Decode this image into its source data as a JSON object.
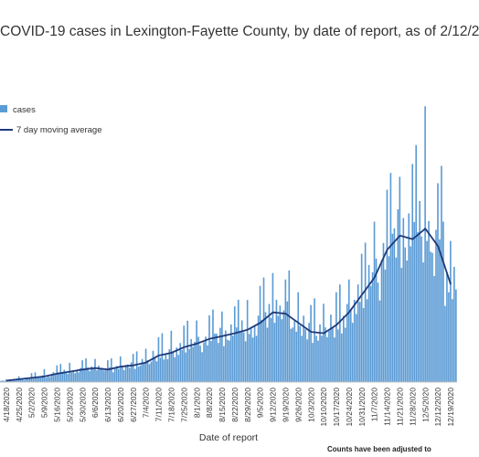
{
  "chart_data": {
    "type": "bar",
    "title": "COVID-19 cases in Lexington-Fayette County, by date of report, as of 2/12/2",
    "xlabel": "Date of report",
    "ylabel": "",
    "note": "Counts have been adjusted to",
    "legend": {
      "placement": "top-left",
      "entries": [
        {
          "name": "cases",
          "type": "bar",
          "color": "#5b9bd5"
        },
        {
          "name": "7 day moving average",
          "type": "line",
          "color": "#1f3a7a"
        }
      ]
    },
    "x_ticks": [
      "4/18/2020",
      "4/25/2020",
      "5/2/2020",
      "5/9/2020",
      "5/16/2020",
      "5/23/2020",
      "5/30/2020",
      "6/6/2020",
      "6/13/2020",
      "6/20/2020",
      "6/27/2020",
      "7/4/2020",
      "7/11/2020",
      "7/18/2020",
      "7/25/2020",
      "8/1/2020",
      "8/8/2020",
      "8/15/2020",
      "8/22/2020",
      "8/29/2020",
      "9/5/2020",
      "9/12/2020",
      "9/19/2020",
      "9/26/2020",
      "10/3/2020",
      "10/10/2020",
      "10/17/2020",
      "10/24/2020",
      "10/31/2020",
      "11/7/2020",
      "11/14/2020",
      "11/21/2020",
      "11/28/2020",
      "12/5/2020",
      "12/12/2020",
      "12/19/2020"
    ],
    "weekly_average": [
      2,
      4,
      6,
      8,
      12,
      15,
      18,
      20,
      18,
      22,
      24,
      28,
      38,
      42,
      50,
      55,
      62,
      66,
      70,
      75,
      85,
      100,
      98,
      85,
      72,
      70,
      82,
      100,
      125,
      150,
      190,
      210,
      205,
      220,
      195,
      140
    ],
    "peak_values": [
      4,
      9,
      14,
      20,
      26,
      30,
      34,
      36,
      34,
      40,
      44,
      52,
      70,
      80,
      88,
      96,
      104,
      110,
      118,
      128,
      150,
      170,
      160,
      140,
      120,
      122,
      140,
      160,
      200,
      250,
      300,
      320,
      340,
      430,
      310,
      220
    ],
    "grid": false,
    "colors": {
      "bar": "#5b9bd5",
      "line": "#1f3a7a"
    }
  }
}
